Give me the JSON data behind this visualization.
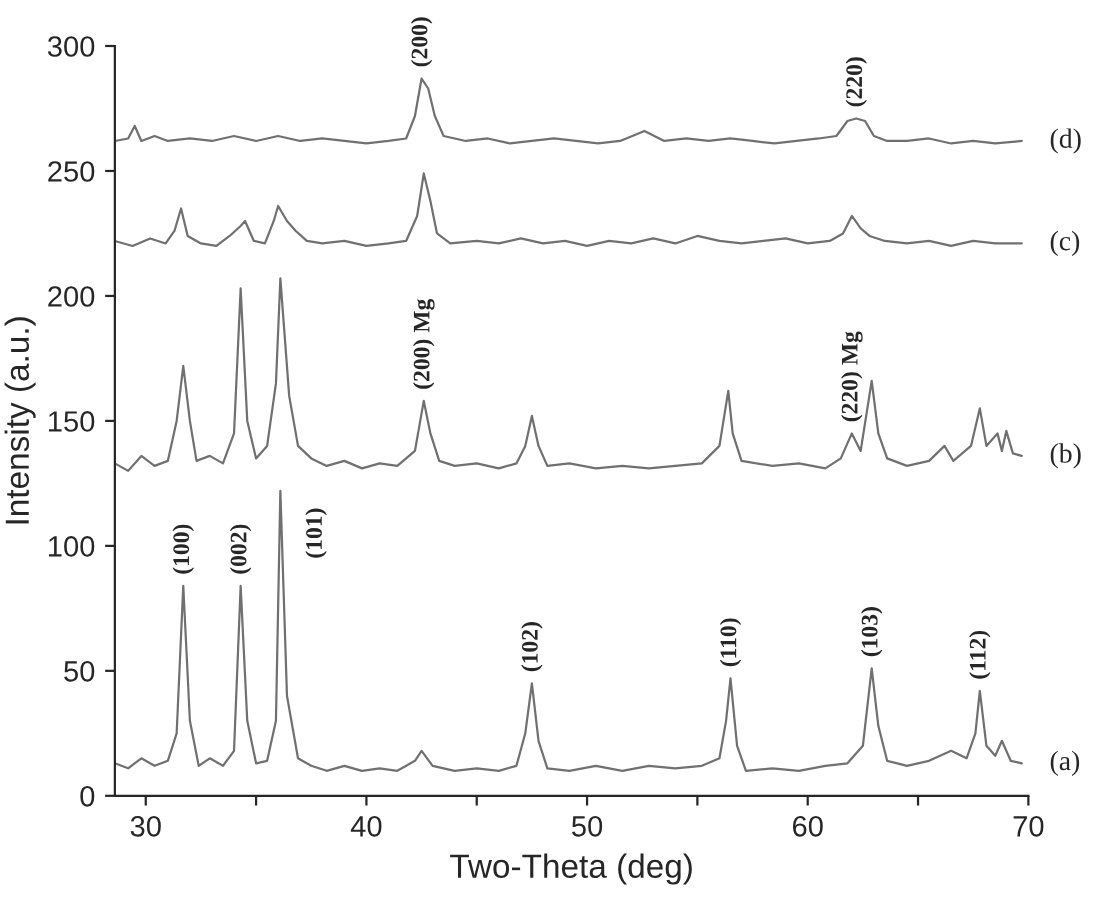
{
  "chart_data": {
    "type": "line",
    "xlabel": "Two-Theta (deg)",
    "ylabel": "Intensity (a.u.)",
    "xlim": [
      28.6,
      70
    ],
    "ylim": [
      0,
      300
    ],
    "xticks": [
      30,
      {
        "value": 35,
        "label": null
      },
      40,
      {
        "value": 45,
        "label": null
      },
      50,
      {
        "value": 55,
        "label": null
      },
      60,
      {
        "value": 65,
        "label": null
      },
      70
    ],
    "yticks": [
      0,
      50,
      100,
      150,
      200,
      250,
      300
    ],
    "grid": false,
    "legend": false,
    "marker": "none",
    "line_style": "solid",
    "series": [
      {
        "name": "(a)",
        "color": "#707070",
        "x": [
          28.6,
          29.2,
          29.8,
          30.4,
          31.0,
          31.4,
          31.7,
          32.0,
          32.4,
          32.9,
          33.5,
          34.0,
          34.3,
          34.6,
          35.0,
          35.5,
          35.9,
          36.1,
          36.4,
          36.9,
          37.5,
          38.2,
          39.0,
          39.8,
          40.6,
          41.4,
          42.2,
          42.5,
          43.0,
          44.0,
          45.0,
          46.0,
          46.8,
          47.2,
          47.5,
          47.8,
          48.2,
          49.2,
          50.4,
          51.6,
          52.8,
          54.0,
          55.2,
          56.0,
          56.3,
          56.5,
          56.8,
          57.2,
          58.4,
          59.6,
          60.8,
          61.8,
          62.5,
          62.9,
          63.2,
          63.6,
          64.5,
          65.5,
          66.5,
          67.2,
          67.6,
          67.8,
          68.1,
          68.5,
          68.8,
          69.2,
          69.7
        ],
        "values": [
          13,
          11,
          15,
          12,
          14,
          25,
          84,
          30,
          12,
          15,
          12,
          18,
          84,
          30,
          13,
          14,
          30,
          122,
          40,
          15,
          12,
          10,
          12,
          10,
          11,
          10,
          14,
          18,
          12,
          10,
          11,
          10,
          12,
          25,
          45,
          22,
          11,
          10,
          12,
          10,
          12,
          11,
          12,
          15,
          30,
          47,
          20,
          10,
          11,
          10,
          12,
          13,
          20,
          51,
          28,
          14,
          12,
          14,
          18,
          15,
          25,
          42,
          20,
          16,
          22,
          14,
          13
        ]
      },
      {
        "name": "(b)",
        "color": "#707070",
        "x": [
          28.6,
          29.2,
          29.8,
          30.4,
          31.0,
          31.4,
          31.7,
          32.0,
          32.3,
          32.9,
          33.5,
          34.0,
          34.3,
          34.6,
          35.0,
          35.5,
          35.9,
          36.1,
          36.5,
          36.9,
          37.5,
          38.2,
          39.0,
          39.8,
          40.6,
          41.4,
          42.2,
          42.6,
          42.9,
          43.3,
          44.0,
          45.0,
          46.0,
          46.8,
          47.2,
          47.5,
          47.8,
          48.2,
          49.2,
          50.4,
          51.6,
          52.8,
          54.0,
          55.2,
          56.0,
          56.4,
          56.6,
          57.0,
          58.4,
          59.6,
          60.8,
          61.5,
          62.0,
          62.4,
          62.9,
          63.2,
          63.6,
          64.5,
          65.5,
          66.2,
          66.6,
          67.4,
          67.8,
          68.1,
          68.6,
          68.8,
          69.0,
          69.3,
          69.7
        ],
        "values": [
          133,
          130,
          136,
          132,
          134,
          150,
          172,
          150,
          134,
          136,
          133,
          145,
          203,
          150,
          135,
          140,
          165,
          207,
          160,
          140,
          135,
          132,
          134,
          131,
          133,
          132,
          138,
          158,
          145,
          134,
          132,
          133,
          131,
          133,
          140,
          152,
          140,
          132,
          133,
          131,
          132,
          131,
          132,
          133,
          140,
          162,
          145,
          134,
          132,
          133,
          131,
          135,
          145,
          138,
          166,
          145,
          135,
          132,
          134,
          140,
          134,
          140,
          155,
          140,
          145,
          138,
          146,
          137,
          136
        ]
      },
      {
        "name": "(c)",
        "color": "#707070",
        "x": [
          28.6,
          29.4,
          30.2,
          30.9,
          31.3,
          31.6,
          31.9,
          32.5,
          33.2,
          33.8,
          34.3,
          34.5,
          34.9,
          35.4,
          35.8,
          36.0,
          36.4,
          36.8,
          37.3,
          38.0,
          39.0,
          40.0,
          41.0,
          41.8,
          42.3,
          42.6,
          42.9,
          43.2,
          43.8,
          45.0,
          46.0,
          47.0,
          48.0,
          49.0,
          50.0,
          51.0,
          52.0,
          53.0,
          54.0,
          55.0,
          56.0,
          57.0,
          58.0,
          59.0,
          60.0,
          61.0,
          61.6,
          62.0,
          62.4,
          62.8,
          63.5,
          64.5,
          65.5,
          66.5,
          67.5,
          68.5,
          69.7
        ],
        "values": [
          222,
          220,
          223,
          221,
          226,
          235,
          224,
          221,
          220,
          224,
          228,
          230,
          222,
          221,
          230,
          236,
          230,
          226,
          222,
          221,
          222,
          220,
          221,
          222,
          232,
          249,
          238,
          225,
          221,
          222,
          221,
          223,
          221,
          222,
          220,
          222,
          221,
          223,
          221,
          224,
          222,
          221,
          222,
          223,
          221,
          222,
          225,
          232,
          227,
          224,
          222,
          221,
          222,
          220,
          222,
          221,
          221
        ]
      },
      {
        "name": "(d)",
        "color": "#707070",
        "x": [
          28.6,
          29.2,
          29.5,
          29.8,
          30.4,
          31.0,
          32.0,
          33.0,
          34.0,
          35.0,
          36.0,
          37.0,
          38.0,
          39.0,
          40.0,
          41.0,
          41.8,
          42.2,
          42.5,
          42.8,
          43.1,
          43.5,
          44.5,
          45.5,
          46.5,
          47.5,
          48.5,
          49.5,
          50.5,
          51.5,
          52.6,
          53.5,
          54.5,
          55.5,
          56.5,
          57.5,
          58.5,
          59.5,
          60.5,
          61.3,
          61.8,
          62.2,
          62.6,
          63.0,
          63.6,
          64.5,
          65.5,
          66.5,
          67.5,
          68.5,
          69.7
        ],
        "values": [
          262,
          263,
          268,
          262,
          264,
          262,
          263,
          262,
          264,
          262,
          264,
          262,
          263,
          262,
          261,
          262,
          263,
          272,
          287,
          283,
          272,
          264,
          262,
          263,
          261,
          262,
          263,
          262,
          261,
          262,
          266,
          262,
          263,
          262,
          263,
          262,
          261,
          262,
          263,
          264,
          270,
          271,
          270,
          264,
          262,
          262,
          263,
          261,
          262,
          261,
          262
        ]
      }
    ],
    "annotations": [
      {
        "text": "(200)",
        "x": 42.5,
        "y": 287
      },
      {
        "text": "(220)",
        "x": 62.2,
        "y": 271
      },
      {
        "text": "(200) Mg",
        "x": 42.6,
        "y": 158
      },
      {
        "text": "(220) Mg",
        "x": 62.0,
        "y": 145
      },
      {
        "text": "(100)",
        "x": 31.7,
        "y": 84
      },
      {
        "text": "(002)",
        "x": 34.3,
        "y": 84
      },
      {
        "text": "(101)",
        "x": 36.1,
        "y": 122
      },
      {
        "text": "(102)",
        "x": 47.5,
        "y": 45
      },
      {
        "text": "(110)",
        "x": 56.5,
        "y": 47
      },
      {
        "text": "(103)",
        "x": 62.9,
        "y": 51
      },
      {
        "text": "(112)",
        "x": 67.8,
        "y": 42
      }
    ]
  }
}
